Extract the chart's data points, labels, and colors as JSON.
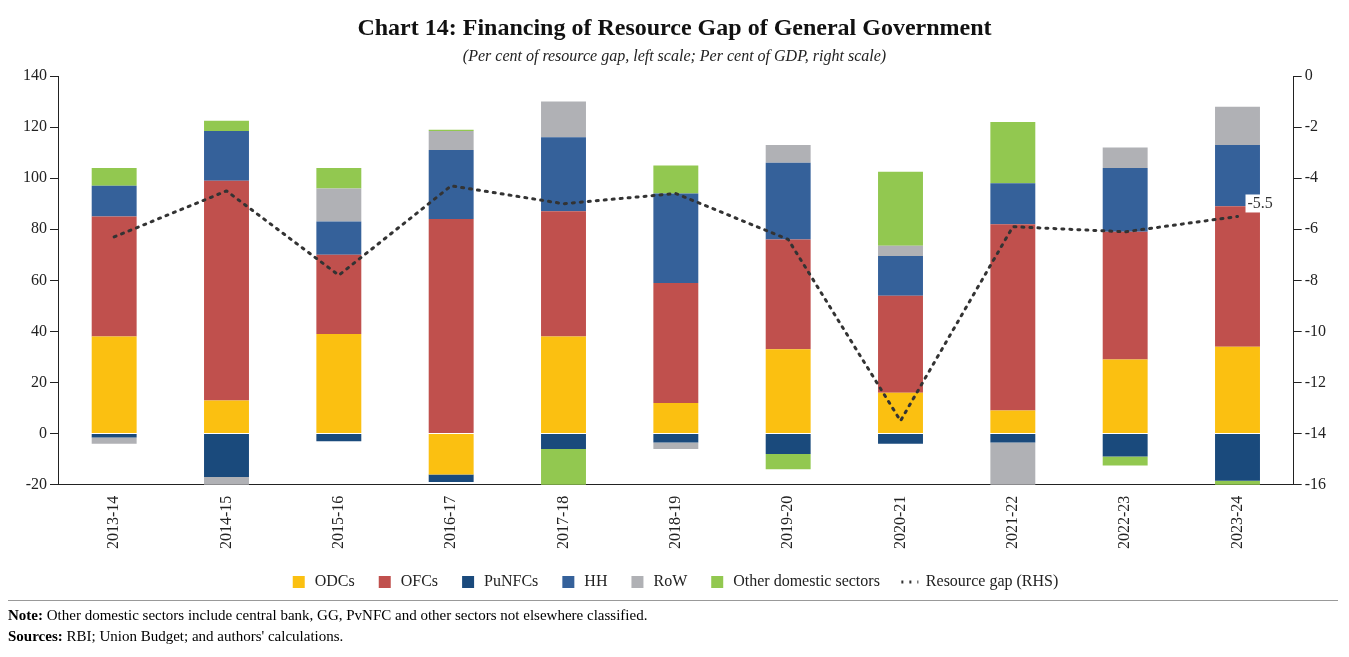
{
  "chart_data": {
    "type": "bar",
    "stacked": true,
    "title": "Chart 14: Financing of Resource Gap of General Government",
    "subtitle": "(Per cent of resource gap, left scale; Per cent of GDP, right scale)",
    "categories": [
      "2013-14",
      "2014-15",
      "2015-16",
      "2016-17",
      "2017-18",
      "2018-19",
      "2019-20",
      "2020-21",
      "2021-22",
      "2022-23",
      "2023-24"
    ],
    "series": [
      {
        "name": "ODCs",
        "color": "#fbc011",
        "values": [
          38,
          13,
          39,
          -16,
          38,
          12,
          33,
          16,
          9,
          29,
          34
        ]
      },
      {
        "name": "OFCs",
        "color": "#c0504d",
        "values": [
          47,
          86,
          31,
          84,
          49,
          47,
          43,
          38,
          73,
          50,
          55
        ]
      },
      {
        "name": "PuNFCs",
        "color": "#1a4a7c",
        "values": [
          -1.5,
          -17,
          -3,
          -3,
          -6,
          -3.5,
          -8,
          -4,
          -3.5,
          -9,
          -18.5
        ]
      },
      {
        "name": "HH",
        "color": "#35619a",
        "values": [
          12,
          19.5,
          13,
          27,
          29,
          35,
          30,
          15.5,
          16,
          25,
          24
        ]
      },
      {
        "name": "RoW",
        "color": "#b0b1b5",
        "values": [
          -2.5,
          -3.5,
          13,
          7.5,
          14,
          -2.5,
          7,
          4,
          -17,
          8,
          15
        ]
      },
      {
        "name": "Other domestic sectors",
        "color": "#92c850",
        "values": [
          7,
          4,
          8,
          0.5,
          -14.5,
          11,
          -6,
          29,
          24,
          -3.5,
          -2
        ]
      },
      {
        "name": "Resource gap (RHS)",
        "type": "line",
        "axis": "y2",
        "color": "#333333",
        "line_style": "dotted",
        "marker": "none",
        "values": [
          -6.3,
          -4.5,
          -7.8,
          -4.3,
          -5,
          -4.6,
          -6.4,
          -13.5,
          -5.9,
          -6.1,
          -5.5
        ],
        "value_labels": [
          null,
          null,
          null,
          null,
          null,
          null,
          null,
          null,
          null,
          null,
          "-5.5"
        ]
      }
    ],
    "ylim": [
      -20,
      140
    ],
    "yticks": [
      -20,
      0,
      20,
      40,
      60,
      80,
      100,
      120,
      140
    ],
    "y2lim": [
      -16,
      0
    ],
    "y2ticks": [
      -16,
      -14,
      -12,
      -10,
      -8,
      -6,
      -4,
      -2,
      0
    ],
    "grid": false,
    "legend": "bottom",
    "annotations": [
      "Note: Other domestic sectors include central bank, GG, PvNFC and other sectors not elsewhere classified.",
      "Sources: RBI; Union Budget; and authors' calculations."
    ]
  }
}
